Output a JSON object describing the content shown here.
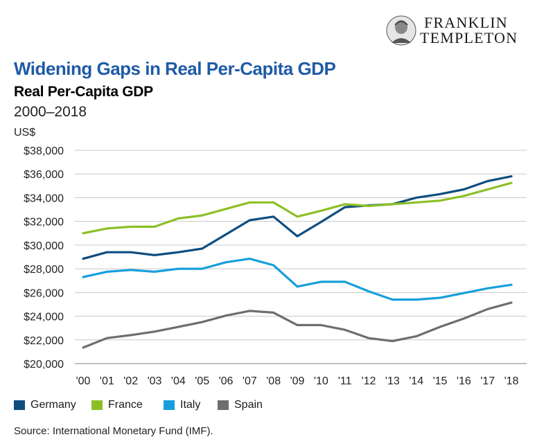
{
  "brand": {
    "line1": "FRANKLIN",
    "line2": "TEMPLETON"
  },
  "header": {
    "title": "Widening Gaps in Real Per-Capita GDP",
    "subtitle": "Real Per-Capita GDP",
    "date_range": "2000–2018",
    "y_unit": "US$"
  },
  "source": "Source: International Monetary Fund (IMF).",
  "colors": {
    "Germany": "#0e4d80",
    "France": "#8cbf26",
    "Italy": "#169fdb",
    "Spain": "#6d6e70",
    "grid": "#c8c8c8",
    "title": "#1f5aa6"
  },
  "chart_data": {
    "type": "line",
    "title": "Real Per-Capita GDP",
    "ylabel": "US$",
    "ylim": [
      20000,
      38000
    ],
    "yticks": [
      20000,
      22000,
      24000,
      26000,
      28000,
      30000,
      32000,
      34000,
      36000,
      38000
    ],
    "ytick_labels": [
      "$20,000",
      "$22,000",
      "$24,000",
      "$26,000",
      "$28,000",
      "$30,000",
      "$32,000",
      "$34,000",
      "$36,000",
      "$38,000"
    ],
    "x": [
      "'00",
      "'01",
      "'02",
      "'03",
      "'04",
      "'05",
      "'06",
      "'07",
      "'08",
      "'09",
      "'10",
      "'11",
      "'12",
      "'13",
      "'14",
      "'15",
      "'16",
      "'17",
      "'18"
    ],
    "grid": true,
    "legend": "bottom-left",
    "series": [
      {
        "name": "Germany",
        "values": [
          28850,
          29400,
          29400,
          29150,
          29400,
          29700,
          30900,
          32100,
          32400,
          30750,
          31950,
          33200,
          33350,
          33450,
          34000,
          34300,
          34700,
          35400,
          35800
        ]
      },
      {
        "name": "France",
        "values": [
          31000,
          31400,
          31550,
          31550,
          32250,
          32500,
          33050,
          33600,
          33600,
          32400,
          32900,
          33450,
          33300,
          33450,
          33600,
          33750,
          34150,
          34700,
          35250
        ]
      },
      {
        "name": "Italy",
        "values": [
          27300,
          27750,
          27900,
          27750,
          28000,
          28000,
          28550,
          28850,
          28300,
          26500,
          26900,
          26900,
          26100,
          25400,
          25400,
          25550,
          25950,
          26350,
          26650
        ]
      },
      {
        "name": "Spain",
        "values": [
          21350,
          22150,
          22400,
          22700,
          23100,
          23500,
          24050,
          24450,
          24300,
          23250,
          23250,
          22850,
          22150,
          21900,
          22300,
          23100,
          23800,
          24600,
          25150
        ]
      }
    ]
  }
}
